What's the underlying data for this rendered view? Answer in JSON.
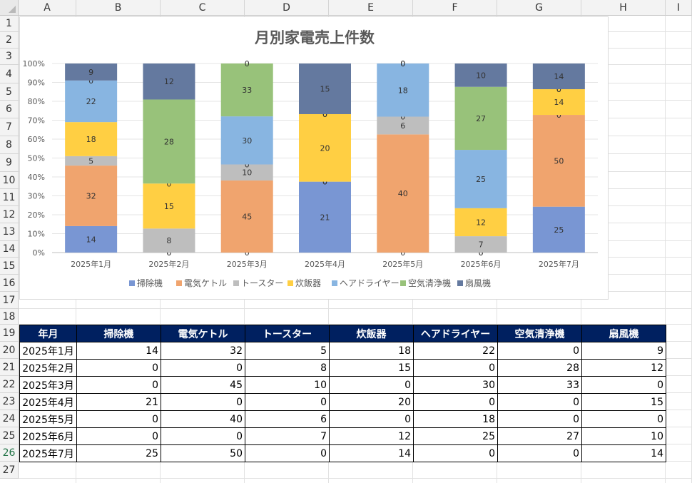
{
  "sheet": {
    "columns": [
      "A",
      "B",
      "C",
      "D",
      "E",
      "F",
      "G",
      "H",
      "I"
    ],
    "rows": [
      "1",
      "2",
      "3",
      "4",
      "5",
      "6",
      "7",
      "8",
      "9",
      "10",
      "11",
      "12",
      "13",
      "14",
      "15",
      "16",
      "17",
      "18",
      "19",
      "20",
      "21",
      "22",
      "23",
      "24",
      "25",
      "26",
      "27"
    ],
    "active_row": "26"
  },
  "chart_data": {
    "type": "bar",
    "stacked": "percent",
    "title": "月別家電売上件数",
    "categories": [
      "2025年1月",
      "2025年2月",
      "2025年3月",
      "2025年4月",
      "2025年5月",
      "2025年6月",
      "2025年7月"
    ],
    "series": [
      {
        "name": "掃除機",
        "color": "#7996d3",
        "values": [
          14,
          0,
          0,
          21,
          0,
          0,
          25
        ]
      },
      {
        "name": "電気ケトル",
        "color": "#f0a46e",
        "values": [
          32,
          0,
          45,
          0,
          40,
          0,
          50
        ]
      },
      {
        "name": "トースター",
        "color": "#bebebe",
        "values": [
          5,
          8,
          10,
          0,
          6,
          7,
          0
        ]
      },
      {
        "name": "炊飯器",
        "color": "#ffcf43",
        "values": [
          18,
          15,
          0,
          20,
          0,
          12,
          14
        ]
      },
      {
        "name": "ヘアドライヤー",
        "color": "#88b5e1",
        "values": [
          22,
          0,
          30,
          0,
          18,
          25,
          0
        ]
      },
      {
        "name": "空気清浄機",
        "color": "#98c27a",
        "values": [
          0,
          28,
          33,
          0,
          0,
          27,
          0
        ]
      },
      {
        "name": "扇風機",
        "color": "#64799f",
        "values": [
          9,
          12,
          0,
          15,
          0,
          10,
          14
        ]
      }
    ],
    "yticks": [
      "0%",
      "10%",
      "20%",
      "30%",
      "40%",
      "50%",
      "60%",
      "70%",
      "80%",
      "90%",
      "100%"
    ],
    "ylim": [
      0,
      100
    ],
    "grid": true,
    "legend": "bottom"
  },
  "table": {
    "headers": [
      "年月",
      "掃除機",
      "電気ケトル",
      "トースター",
      "炊飯器",
      "ヘアドライヤー",
      "空気清浄機",
      "扇風機"
    ],
    "rows": [
      [
        "2025年1月",
        "14",
        "32",
        "5",
        "18",
        "22",
        "0",
        "9"
      ],
      [
        "2025年2月",
        "0",
        "0",
        "8",
        "15",
        "0",
        "28",
        "12"
      ],
      [
        "2025年3月",
        "0",
        "45",
        "10",
        "0",
        "30",
        "33",
        "0"
      ],
      [
        "2025年4月",
        "21",
        "0",
        "0",
        "20",
        "0",
        "0",
        "15"
      ],
      [
        "2025年5月",
        "0",
        "40",
        "6",
        "0",
        "18",
        "0",
        "0"
      ],
      [
        "2025年6月",
        "0",
        "0",
        "7",
        "12",
        "25",
        "27",
        "10"
      ],
      [
        "2025年7月",
        "25",
        "50",
        "0",
        "14",
        "0",
        "0",
        "14"
      ]
    ]
  }
}
